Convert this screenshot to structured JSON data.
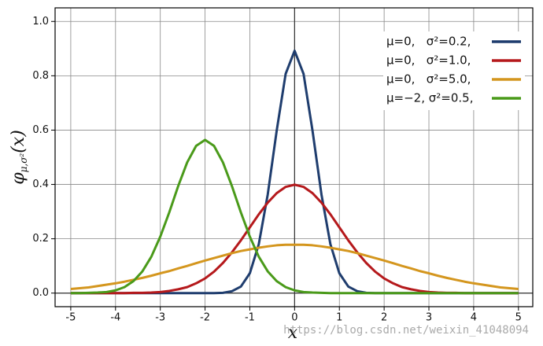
{
  "chart_data": {
    "type": "line",
    "xlabel": "x",
    "ylabel": {
      "main": "φ",
      "sub": "μ,σ²",
      "arg": "(x)"
    },
    "watermark": "https://blog.csdn.net/weixin_41048094",
    "xlim": [
      -5.35,
      5.32
    ],
    "ylim": [
      -0.05,
      1.05
    ],
    "xticks": [
      -5,
      -4,
      -3,
      -2,
      -1,
      0,
      1,
      2,
      3,
      4,
      5
    ],
    "yticks": [
      {
        "value": 0,
        "label": "0.0"
      },
      0.2,
      0.4,
      0.6,
      0.8,
      {
        "value": 1,
        "label": "1.0"
      }
    ],
    "grid": true,
    "legend": "upper right",
    "x": [
      -5,
      -4.8,
      -4.6,
      -4.4,
      -4.2,
      -4,
      -3.8,
      -3.6,
      -3.4,
      -3.2,
      -3,
      -2.8,
      -2.6,
      -2.4,
      -2.2,
      -2,
      -1.8,
      -1.6,
      -1.4,
      -1.2,
      -1,
      -0.8,
      -0.6,
      -0.4,
      -0.2,
      0,
      0.2,
      0.4,
      0.6,
      0.8,
      1,
      1.2,
      1.4,
      1.6,
      1.8,
      2,
      2.2,
      2.4,
      2.6,
      2.8,
      3,
      3.2,
      3.4,
      3.6,
      3.8,
      4,
      4.2,
      4.4,
      4.6,
      4.8,
      5
    ],
    "series": [
      {
        "name": "μ=0,   σ²=0.2,",
        "color": "#1f3d6e",
        "values": [
          0,
          0,
          0,
          0,
          0,
          0,
          0,
          0,
          0,
          0,
          0,
          0,
          0,
          0,
          0,
          0,
          0,
          0.001,
          0.007,
          0.024,
          0.073,
          0.18,
          0.363,
          0.598,
          0.807,
          0.892,
          0.807,
          0.598,
          0.363,
          0.18,
          0.073,
          0.024,
          0.007,
          0.001,
          0,
          0,
          0,
          0,
          0,
          0,
          0,
          0,
          0,
          0,
          0,
          0,
          0,
          0,
          0,
          0,
          0
        ]
      },
      {
        "name": "μ=0,   σ²=1.0,",
        "color": "#b5191c",
        "values": [
          0,
          0,
          0,
          0,
          0,
          0,
          0,
          0.001,
          0.001,
          0.002,
          0.004,
          0.008,
          0.014,
          0.022,
          0.036,
          0.054,
          0.079,
          0.111,
          0.15,
          0.194,
          0.242,
          0.29,
          0.333,
          0.368,
          0.391,
          0.399,
          0.391,
          0.368,
          0.333,
          0.29,
          0.242,
          0.194,
          0.15,
          0.111,
          0.079,
          0.054,
          0.036,
          0.022,
          0.014,
          0.008,
          0.004,
          0.002,
          0.001,
          0.001,
          0,
          0,
          0,
          0,
          0,
          0,
          0
        ]
      },
      {
        "name": "μ=0,   σ²=5.0,",
        "color": "#d4961e",
        "values": [
          0.015,
          0.018,
          0.021,
          0.026,
          0.031,
          0.036,
          0.042,
          0.049,
          0.056,
          0.064,
          0.073,
          0.081,
          0.091,
          0.1,
          0.11,
          0.12,
          0.129,
          0.138,
          0.147,
          0.155,
          0.161,
          0.167,
          0.172,
          0.176,
          0.178,
          0.178,
          0.178,
          0.176,
          0.172,
          0.167,
          0.161,
          0.155,
          0.147,
          0.138,
          0.129,
          0.12,
          0.11,
          0.1,
          0.091,
          0.081,
          0.073,
          0.064,
          0.056,
          0.049,
          0.042,
          0.036,
          0.031,
          0.026,
          0.021,
          0.018,
          0.015
        ]
      },
      {
        "name": "μ=−2, σ²=0.5,",
        "color": "#4a9a1a",
        "values": [
          0,
          0,
          0.001,
          0.002,
          0.004,
          0.01,
          0.022,
          0.044,
          0.08,
          0.134,
          0.208,
          0.297,
          0.394,
          0.481,
          0.542,
          0.564,
          0.542,
          0.481,
          0.394,
          0.297,
          0.208,
          0.134,
          0.08,
          0.044,
          0.022,
          0.01,
          0.004,
          0.002,
          0.001,
          0,
          0,
          0,
          0,
          0,
          0,
          0,
          0,
          0,
          0,
          0,
          0,
          0,
          0,
          0,
          0,
          0,
          0,
          0,
          0,
          0,
          0
        ]
      }
    ]
  }
}
